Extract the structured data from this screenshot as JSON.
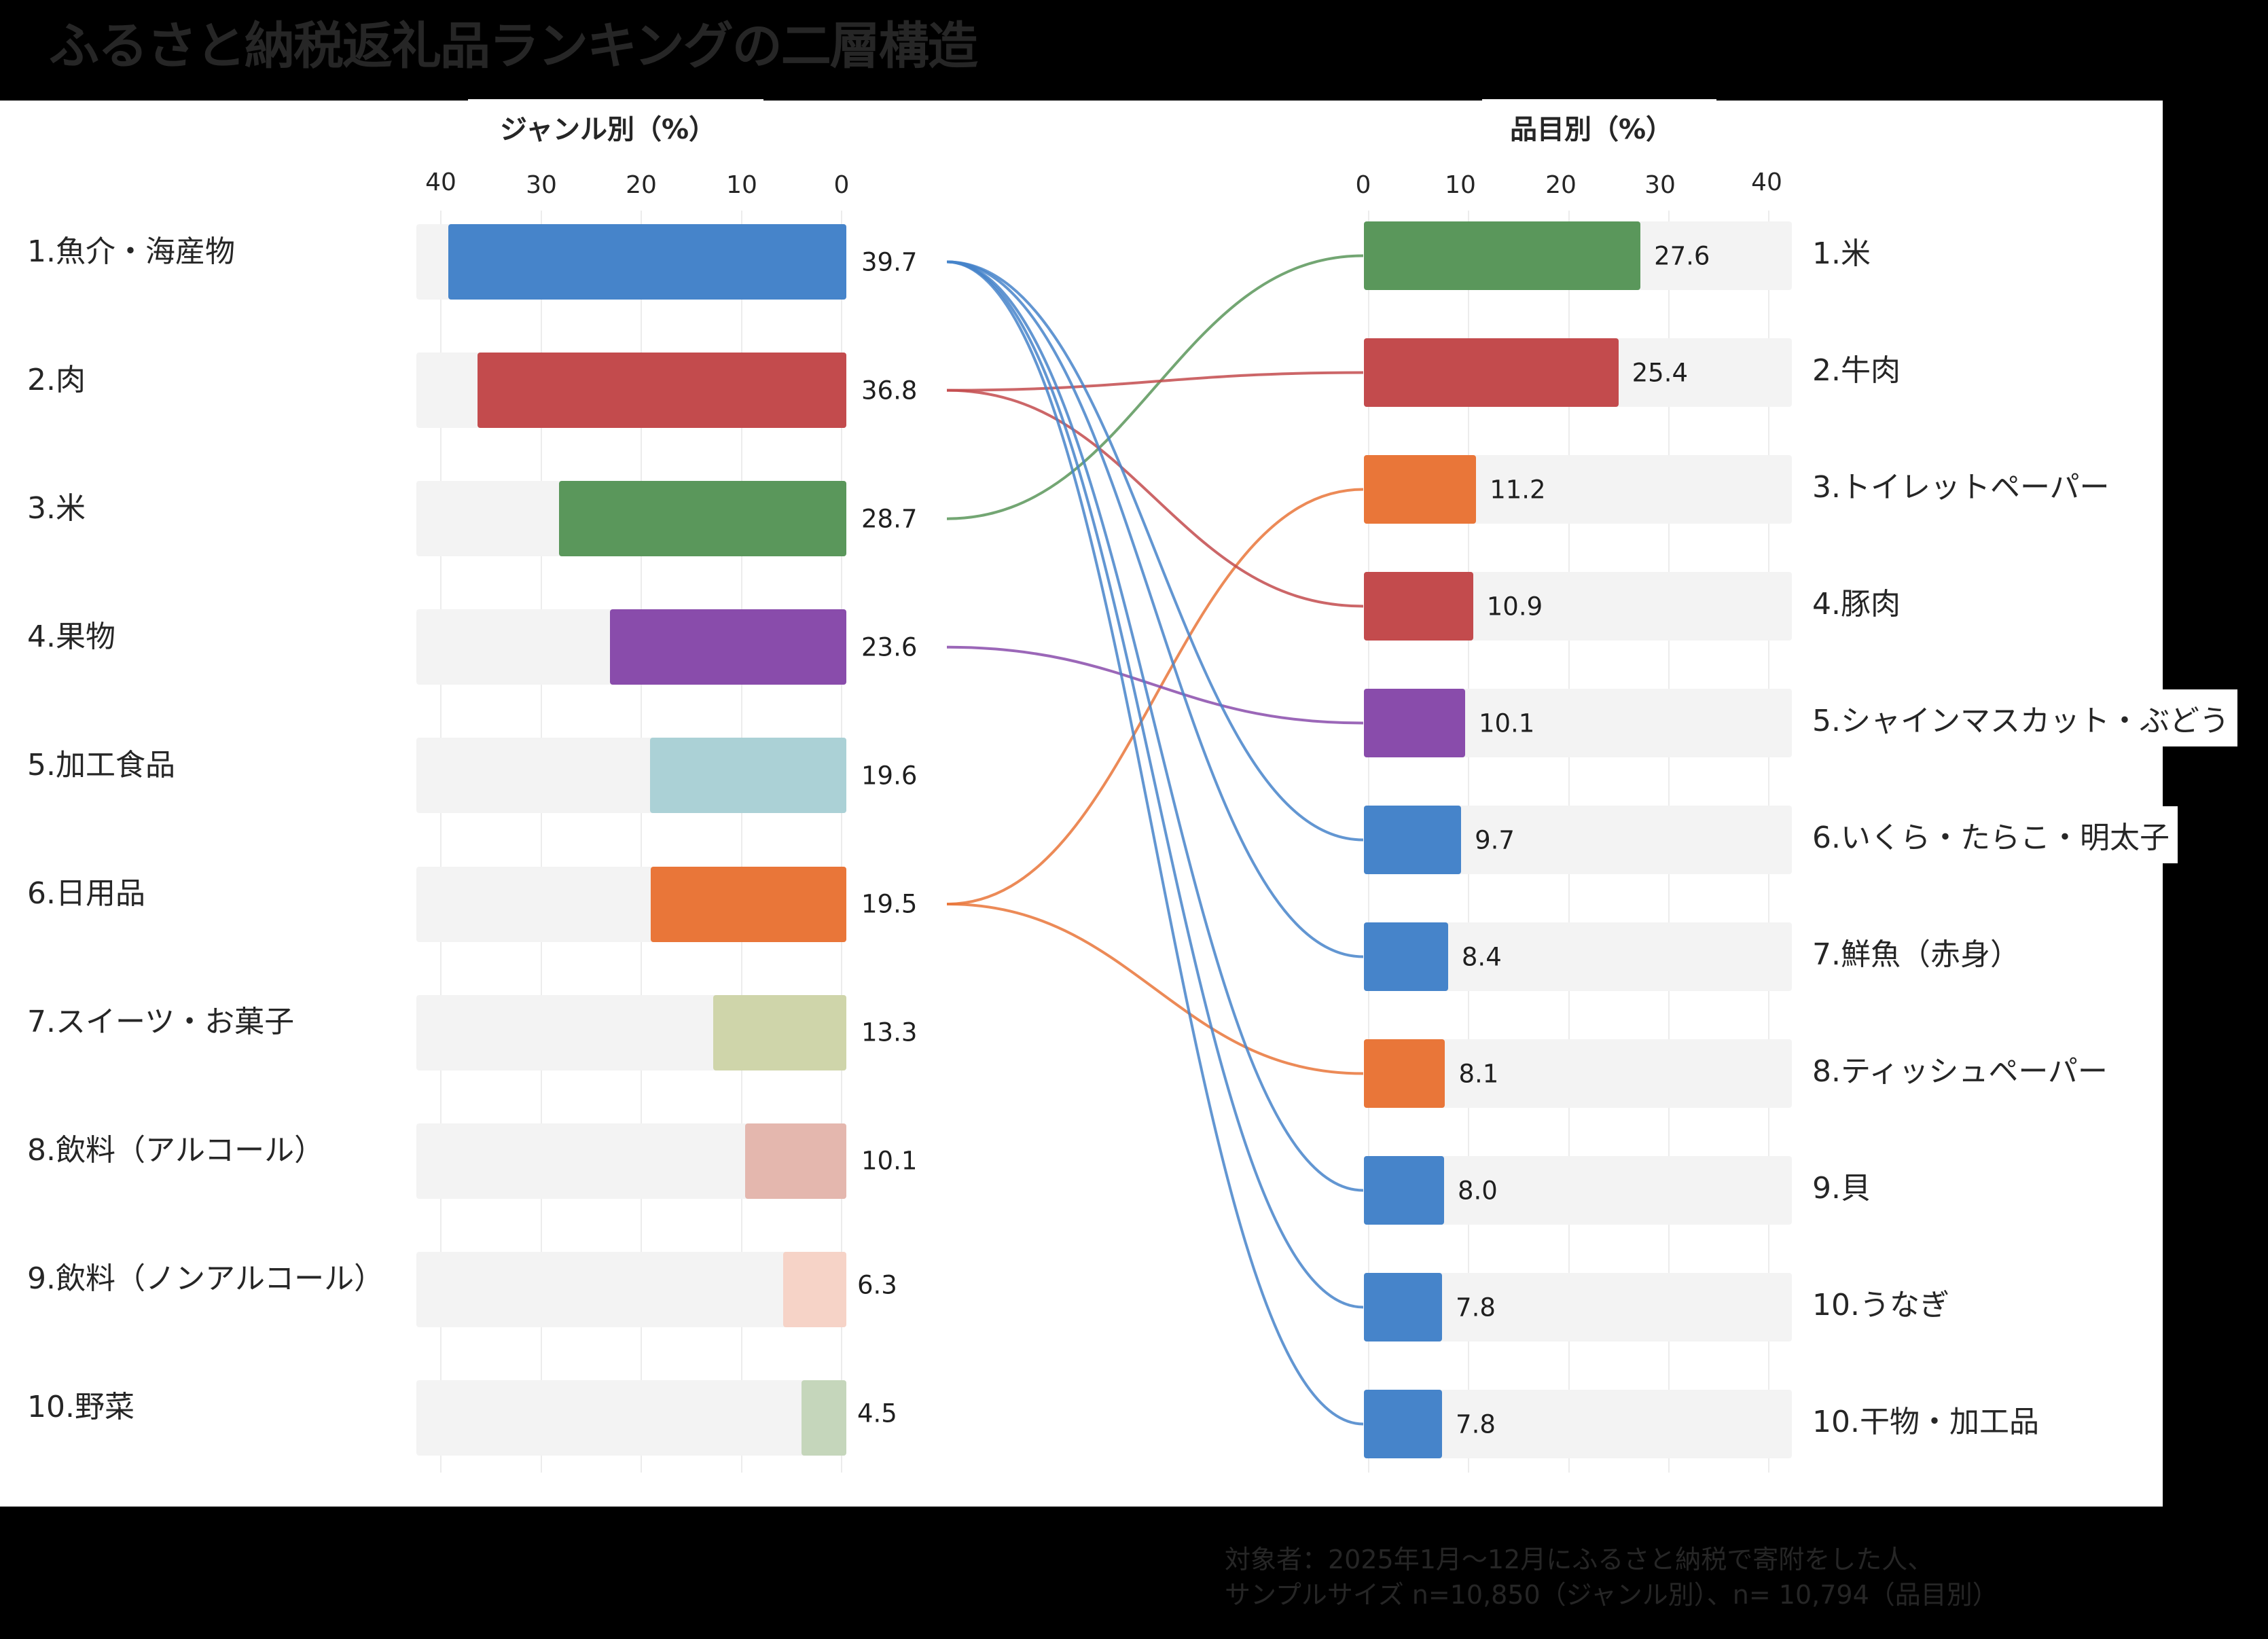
{
  "title": "ふるさと納税返礼品ランキングの二層構造",
  "left_panel": {
    "subtitle": "ジャンル別（%）",
    "ticks": [
      "40",
      "30",
      "20",
      "10",
      "0"
    ],
    "items": [
      {
        "label": "1.魚介・海産物",
        "value": "39.7",
        "color": "#4684CA"
      },
      {
        "label": "2.肉",
        "value": "36.8",
        "color": "#C34B4D"
      },
      {
        "label": "3.米",
        "value": "28.7",
        "color": "#5A975B"
      },
      {
        "label": "4.果物",
        "value": "23.6",
        "color": "#894CAB"
      },
      {
        "label": "5.加工食品",
        "value": "19.6",
        "color": "#ABD1D6"
      },
      {
        "label": "6.日用品",
        "value": "19.5",
        "color": "#E97639"
      },
      {
        "label": "7.スイーツ・お菓子",
        "value": "13.3",
        "color": "#CFD5AA"
      },
      {
        "label": "8.飲料（アルコール）",
        "value": "10.1",
        "color": "#E4B7AE"
      },
      {
        "label": "9.飲料（ノンアルコール）",
        "value": "6.3",
        "color": "#F6D3C7"
      },
      {
        "label": "10.野菜",
        "value": "4.5",
        "color": "#C5D6BB"
      }
    ]
  },
  "right_panel": {
    "subtitle": "品目別（%）",
    "ticks": [
      "0",
      "10",
      "20",
      "30",
      "40"
    ],
    "items": [
      {
        "label": "1.米",
        "value": "27.6",
        "color": "#5A975B",
        "source": 2
      },
      {
        "label": "2.牛肉",
        "value": "25.4",
        "color": "#C34B4D",
        "source": 1
      },
      {
        "label": "3.トイレットペーパー",
        "value": "11.2",
        "color": "#E97639",
        "source": 5
      },
      {
        "label": "4.豚肉",
        "value": "10.9",
        "color": "#C34B4D",
        "source": 1
      },
      {
        "label": "5.シャインマスカット・ぶどう",
        "value": "10.1",
        "color": "#894CAB",
        "source": 3
      },
      {
        "label": "6.いくら・たらこ・明太子",
        "value": "9.7",
        "color": "#4684CA",
        "source": 0
      },
      {
        "label": "7.鮮魚（赤身）",
        "value": "8.4",
        "color": "#4684CA",
        "source": 0
      },
      {
        "label": "8.ティッシュペーパー",
        "value": "8.1",
        "color": "#E97639",
        "source": 5
      },
      {
        "label": "9.貝",
        "value": "8.0",
        "color": "#4684CA",
        "source": 0
      },
      {
        "label": "10.うなぎ",
        "value": "7.8",
        "color": "#4684CA",
        "source": 0
      },
      {
        "label": "10.干物・加工品",
        "value": "7.8",
        "color": "#4684CA",
        "source": 0
      }
    ]
  },
  "footnote": {
    "line1": "対象者：2025年1月～12月にふるさと納税で寄附をした人、",
    "line2": "サンプルサイズ n=10,850（ジャンル別）、n= 10,794（品目別）"
  },
  "chart_data": [
    {
      "type": "bar",
      "orientation": "horizontal",
      "title": "ジャンル別（%）",
      "categories": [
        "1.魚介・海産物",
        "2.肉",
        "3.米",
        "4.果物",
        "5.加工食品",
        "6.日用品",
        "7.スイーツ・お菓子",
        "8.飲料（アルコール）",
        "9.飲料（ノンアルコール）",
        "10.野菜"
      ],
      "values": [
        39.7,
        36.8,
        28.7,
        23.6,
        19.6,
        19.5,
        13.3,
        10.1,
        6.3,
        4.5
      ],
      "xlim": [
        40,
        0
      ],
      "xticks": [
        40,
        30,
        20,
        10,
        0
      ],
      "direction": "right-to-left",
      "grid": true
    },
    {
      "type": "bar",
      "orientation": "horizontal",
      "title": "品目別（%）",
      "categories": [
        "1.米",
        "2.牛肉",
        "3.トイレットペーパー",
        "4.豚肉",
        "5.シャインマスカット・ぶどう",
        "6.いくら・たらこ・明太子",
        "7.鮮魚（赤身）",
        "8.ティッシュペーパー",
        "9.貝",
        "10.うなぎ",
        "10.干物・加工品"
      ],
      "values": [
        27.6,
        25.4,
        11.2,
        10.9,
        10.1,
        9.7,
        8.4,
        8.1,
        8.0,
        7.8,
        7.8
      ],
      "xlim": [
        0,
        40
      ],
      "xticks": [
        0,
        10,
        20,
        30,
        40
      ],
      "grid": true
    },
    {
      "type": "links",
      "description": "Connector curves from genre (left) to item (right)",
      "links": [
        {
          "from": "1.魚介・海産物",
          "to": [
            "6.いくら・たらこ・明太子",
            "7.鮮魚（赤身）",
            "9.貝",
            "10.うなぎ",
            "10.干物・加工品"
          ]
        },
        {
          "from": "2.肉",
          "to": [
            "2.牛肉",
            "4.豚肉"
          ]
        },
        {
          "from": "3.米",
          "to": [
            "1.米"
          ]
        },
        {
          "from": "4.果物",
          "to": [
            "5.シャインマスカット・ぶどう"
          ]
        },
        {
          "from": "6.日用品",
          "to": [
            "3.トイレットペーパー",
            "8.ティッシュペーパー"
          ]
        }
      ]
    }
  ]
}
